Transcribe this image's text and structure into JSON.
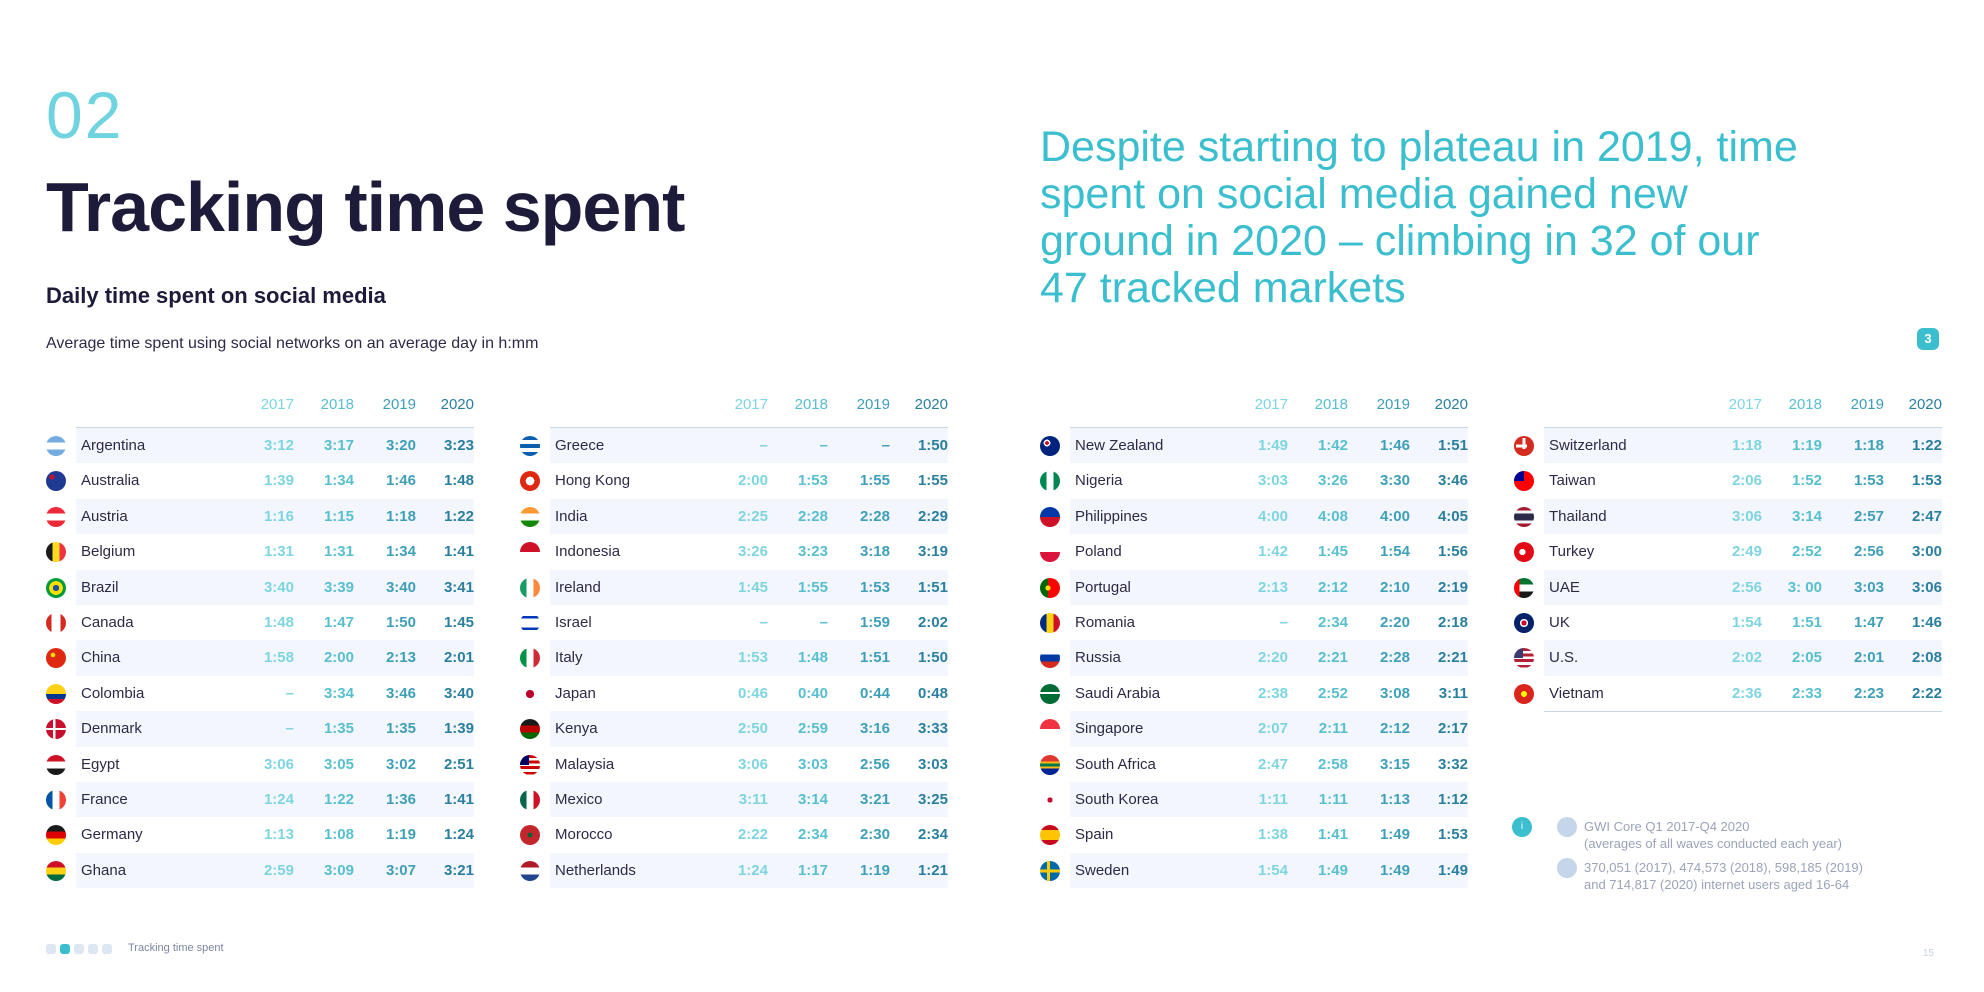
{
  "header": {
    "section_number": "02",
    "title": "Tracking time spent",
    "subtitle": "Daily time spent on social media",
    "description": "Average time spent using social networks on an average day in h:mm",
    "quote": "Despite starting to plateau in 2019, time spent on social media gained new ground in 2020 – climbing in 32 of our 47 tracked markets",
    "note_badge": "3"
  },
  "colors": {
    "accent": "#3bbfce",
    "title": "#1e1b3a",
    "y2017": "#7ed5e0",
    "y2018": "#58bfcf",
    "y2019": "#3e9fb8",
    "y2020": "#2a7f9e"
  },
  "chart_data": {
    "type": "table",
    "years": [
      "2017",
      "2018",
      "2019",
      "2020"
    ],
    "tables": [
      {
        "rows": [
          {
            "country": "Argentina",
            "values": [
              "3:12",
              "3:17",
              "3:20",
              "3:23"
            ]
          },
          {
            "country": "Australia",
            "values": [
              "1:39",
              "1:34",
              "1:46",
              "1:48"
            ]
          },
          {
            "country": "Austria",
            "values": [
              "1:16",
              "1:15",
              "1:18",
              "1:22"
            ]
          },
          {
            "country": "Belgium",
            "values": [
              "1:31",
              "1:31",
              "1:34",
              "1:41"
            ]
          },
          {
            "country": "Brazil",
            "values": [
              "3:40",
              "3:39",
              "3:40",
              "3:41"
            ]
          },
          {
            "country": "Canada",
            "values": [
              "1:48",
              "1:47",
              "1:50",
              "1:45"
            ]
          },
          {
            "country": "China",
            "values": [
              "1:58",
              "2:00",
              "2:13",
              "2:01"
            ]
          },
          {
            "country": "Colombia",
            "values": [
              "–",
              "3:34",
              "3:46",
              "3:40"
            ]
          },
          {
            "country": "Denmark",
            "values": [
              "–",
              "1:35",
              "1:35",
              "1:39"
            ]
          },
          {
            "country": "Egypt",
            "values": [
              "3:06",
              "3:05",
              "3:02",
              "2:51"
            ]
          },
          {
            "country": "France",
            "values": [
              "1:24",
              "1:22",
              "1:36",
              "1:41"
            ]
          },
          {
            "country": "Germany",
            "values": [
              "1:13",
              "1:08",
              "1:19",
              "1:24"
            ]
          },
          {
            "country": "Ghana",
            "values": [
              "2:59",
              "3:09",
              "3:07",
              "3:21"
            ]
          }
        ]
      },
      {
        "rows": [
          {
            "country": "Greece",
            "values": [
              "–",
              "–",
              "–",
              "1:50"
            ]
          },
          {
            "country": "Hong Kong",
            "values": [
              "2:00",
              "1:53",
              "1:55",
              "1:55"
            ]
          },
          {
            "country": "India",
            "values": [
              "2:25",
              "2:28",
              "2:28",
              "2:29"
            ]
          },
          {
            "country": "Indonesia",
            "values": [
              "3:26",
              "3:23",
              "3:18",
              "3:19"
            ]
          },
          {
            "country": "Ireland",
            "values": [
              "1:45",
              "1:55",
              "1:53",
              "1:51"
            ]
          },
          {
            "country": "Israel",
            "values": [
              "–",
              "–",
              "1:59",
              "2:02"
            ]
          },
          {
            "country": "Italy",
            "values": [
              "1:53",
              "1:48",
              "1:51",
              "1:50"
            ]
          },
          {
            "country": "Japan",
            "values": [
              "0:46",
              "0:40",
              "0:44",
              "0:48"
            ]
          },
          {
            "country": "Kenya",
            "values": [
              "2:50",
              "2:59",
              "3:16",
              "3:33"
            ]
          },
          {
            "country": "Malaysia",
            "values": [
              "3:06",
              "3:03",
              "2:56",
              "3:03"
            ]
          },
          {
            "country": "Mexico",
            "values": [
              "3:11",
              "3:14",
              "3:21",
              "3:25"
            ]
          },
          {
            "country": "Morocco",
            "values": [
              "2:22",
              "2:34",
              "2:30",
              "2:34"
            ]
          },
          {
            "country": "Netherlands",
            "values": [
              "1:24",
              "1:17",
              "1:19",
              "1:21"
            ]
          }
        ]
      },
      {
        "rows": [
          {
            "country": "New Zealand",
            "values": [
              "1:49",
              "1:42",
              "1:46",
              "1:51"
            ]
          },
          {
            "country": "Nigeria",
            "values": [
              "3:03",
              "3:26",
              "3:30",
              "3:46"
            ]
          },
          {
            "country": "Philippines",
            "values": [
              "4:00",
              "4:08",
              "4:00",
              "4:05"
            ]
          },
          {
            "country": "Poland",
            "values": [
              "1:42",
              "1:45",
              "1:54",
              "1:56"
            ]
          },
          {
            "country": "Portugal",
            "values": [
              "2:13",
              "2:12",
              "2:10",
              "2:19"
            ]
          },
          {
            "country": "Romania",
            "values": [
              "–",
              "2:34",
              "2:20",
              "2:18"
            ]
          },
          {
            "country": "Russia",
            "values": [
              "2:20",
              "2:21",
              "2:28",
              "2:21"
            ]
          },
          {
            "country": "Saudi Arabia",
            "values": [
              "2:38",
              "2:52",
              "3:08",
              "3:11"
            ]
          },
          {
            "country": "Singapore",
            "values": [
              "2:07",
              "2:11",
              "2:12",
              "2:17"
            ]
          },
          {
            "country": "South Africa",
            "values": [
              "2:47",
              "2:58",
              "3:15",
              "3:32"
            ]
          },
          {
            "country": "South Korea",
            "values": [
              "1:11",
              "1:11",
              "1:13",
              "1:12"
            ]
          },
          {
            "country": "Spain",
            "values": [
              "1:38",
              "1:41",
              "1:49",
              "1:53"
            ]
          },
          {
            "country": "Sweden",
            "values": [
              "1:54",
              "1:49",
              "1:49",
              "1:49"
            ]
          }
        ]
      },
      {
        "rows": [
          {
            "country": "Switzerland",
            "values": [
              "1:18",
              "1:19",
              "1:18",
              "1:22"
            ]
          },
          {
            "country": "Taiwan",
            "values": [
              "2:06",
              "1:52",
              "1:53",
              "1:53"
            ]
          },
          {
            "country": "Thailand",
            "values": [
              "3:06",
              "3:14",
              "2:57",
              "2:47"
            ]
          },
          {
            "country": "Turkey",
            "values": [
              "2:49",
              "2:52",
              "2:56",
              "3:00"
            ]
          },
          {
            "country": "UAE",
            "values": [
              "2:56",
              "3: 00",
              "3:03",
              "3:06"
            ]
          },
          {
            "country": "UK",
            "values": [
              "1:54",
              "1:51",
              "1:47",
              "1:46"
            ]
          },
          {
            "country": "U.S.",
            "values": [
              "2:02",
              "2:05",
              "2:01",
              "2:08"
            ]
          },
          {
            "country": "Vietnam",
            "values": [
              "2:36",
              "2:33",
              "2:23",
              "2:22"
            ]
          }
        ]
      }
    ]
  },
  "flags": {
    "Argentina": "linear-gradient(#74acdf 0 33%,#ffffff 33% 67%,#74acdf 67%)",
    "Australia": "radial-gradient(circle at 30% 30%,#c8102e 0 12%,#1f3a93 13%)",
    "Austria": "linear-gradient(#ed2939 0 33%,#ffffff 33% 67%,#ed2939 67%)",
    "Belgium": "linear-gradient(90deg,#1a1a1a 0 33%,#fdda24 33% 67%,#ef3340 67%)",
    "Brazil": "radial-gradient(circle,#1d4fa3 0 22%,#fedf00 23% 48%,#009c3b 49%)",
    "Canada": "linear-gradient(90deg,#d52b1e 0 28%,#ffffff 28% 72%,#d52b1e 72%)",
    "China": "radial-gradient(circle at 35% 35%,#ffde00 0 12%,#de2910 13%)",
    "Colombia": "linear-gradient(#fcd116 0 50%,#003893 50% 75%,#ce1126 75%)",
    "Denmark": "linear-gradient(90deg,transparent 0 35%,#ffffff 35% 48%,transparent 48%),linear-gradient(#c8102e 0 44%,#ffffff 44% 56%,#c8102e 56%)",
    "Egypt": "linear-gradient(#ce1126 0 33%,#ffffff 33% 67%,#1a1a1a 67%)",
    "France": "linear-gradient(90deg,#0055a4 0 33%,#ffffff 33% 67%,#ef4135 67%)",
    "Germany": "linear-gradient(#1a1a1a 0 33%,#dd0000 33% 67%,#ffce00 67%)",
    "Ghana": "linear-gradient(#ce1126 0 33%,#fcd116 33% 67%,#006b3f 67%)",
    "Greece": "linear-gradient(#0d5eaf 0 20%,#ffffff 20% 40%,#0d5eaf 40% 60%,#ffffff 60% 80%,#0d5eaf 80%)",
    "Hong Kong": "radial-gradient(circle,#ffffff 0 30%,#de2910 31%)",
    "India": "linear-gradient(#ff9933 0 33%,#ffffff 33% 67%,#138808 67%)",
    "Indonesia": "linear-gradient(#ce1126 0 50%,#ffffff 50%)",
    "Ireland": "linear-gradient(90deg,#169b62 0 33%,#ffffff 33% 67%,#ff883e 67%)",
    "Israel": "linear-gradient(#ffffff 0 15%,#0038b8 15% 28%,#ffffff 28% 72%,#0038b8 72% 85%,#ffffff 85%)",
    "Italy": "linear-gradient(90deg,#009246 0 33%,#ffffff 33% 67%,#ce2b37 67%)",
    "Japan": "radial-gradient(circle,#bc002d 0 28%,#ffffff 29%)",
    "Kenya": "radial-gradient(ellipse at center,#bb0000 0 22%,transparent 23%),linear-gradient(#1a1a1a 0 33%,#bb0000 33% 67%,#006600 67%)",
    "Malaysia": "linear-gradient(90deg,#010066 0 45%,transparent 45%) 0 0/100% 50% no-repeat,repeating-linear-gradient(#cc0001 0 14%,#ffffff 14% 28%)",
    "Mexico": "linear-gradient(90deg,#006847 0 33%,#ffffff 33% 67%,#ce1126 67%)",
    "Morocco": "radial-gradient(circle,#006233 0 16%,#c1272d 17%)",
    "Netherlands": "linear-gradient(#ae1c28 0 33%,#ffffff 33% 67%,#21468b 67%)",
    "New Zealand": "radial-gradient(circle at 35% 35%,#c8102e 0 10%,#ffffff 11% 18%,#00247d 19%)",
    "Nigeria": "linear-gradient(90deg,#008751 0 33%,#ffffff 33% 67%,#008751 67%)",
    "Philippines": "linear-gradient(60deg,#fcd116 0 12%,transparent 12%),linear-gradient(#0038a8 0 50%,#ce1126 50%)",
    "Poland": "linear-gradient(#ffffff 0 50%,#dc143c 50%)",
    "Portugal": "radial-gradient(circle at 40% 50%,#ffe000 0 16%,transparent 17%),linear-gradient(90deg,#006600 0 40%,#ff0000 40%)",
    "Romania": "linear-gradient(90deg,#002b7f 0 33%,#fcd116 33% 67%,#ce1126 67%)",
    "Russia": "linear-gradient(#ffffff 0 33%,#0039a6 33% 67%,#d52b1e 67%)",
    "Saudi Arabia": "linear-gradient(#006c35 0 40%,#ffffff 40% 50%,#006c35 50%)",
    "Singapore": "linear-gradient(#ef3340 0 50%,#ffffff 50%)",
    "South Africa": "linear-gradient(#de3831 0 33%,#ffb612 33% 42%,#007a4d 42% 58%,#ffb612 58% 67%,#002395 67%)",
    "South Korea": "radial-gradient(circle,#c60c30 0 18%,#ffffff 19%)",
    "Spain": "linear-gradient(#c60b1e 0 25%,#ffc400 25% 75%,#c60b1e 75%)",
    "Sweden": "linear-gradient(90deg,transparent 0 35%,#fecc00 35% 50%,transparent 50%),linear-gradient(#006aa7 0 42%,#fecc00 42% 58%,#006aa7 58%)",
    "Switzerland": "linear-gradient(90deg,transparent 0 42%,#ffffff 42% 58%,transparent 58%) 0 22%/100% 56% no-repeat,linear-gradient(transparent 0 42%,#ffffff 42% 58%,transparent 58%) 22% 0/56% 100% no-repeat,#d52b1e",
    "Taiwan": "linear-gradient(90deg,#000095 0 50%,transparent 50%) 0 0/100% 50% no-repeat,#fe0000",
    "Thailand": "linear-gradient(#a51931 0 17%,#f4f5f8 17% 33%,#2d2a4a 33% 67%,#f4f5f8 67% 83%,#a51931 83%)",
    "Turkey": "radial-gradient(circle at 42% 50%,#ffffff 0 20%,#e30a17 21%)",
    "UAE": "linear-gradient(90deg,#ff0000 0 28%,transparent 28%),linear-gradient(#00732f 0 33%,#ffffff 33% 67%,#1a1a1a 67%)",
    "UK": "radial-gradient(circle,#c8102e 0 18%,#ffffff 19% 28%,#012169 29%)",
    "U.S.": "linear-gradient(90deg,#3c3b6e 0 45%,transparent 45%) 0 0/100% 50% no-repeat,repeating-linear-gradient(#b22234 0 14%,#ffffff 14% 28%)",
    "Vietnam": "radial-gradient(circle,#ffff00 0 20%,#da251d 21%)"
  },
  "source": {
    "info_icon": "info-icon",
    "line1": "GWI Core Q1 2017-Q4 2020",
    "line2": "(averages of all waves conducted each year)",
    "line3": "370,051 (2017), 474,573 (2018), 598,185 (2019)",
    "line4": "and 714,817 (2020) internet users aged 16-64"
  },
  "footer": {
    "label": "Tracking time spent",
    "page_number": "15"
  }
}
